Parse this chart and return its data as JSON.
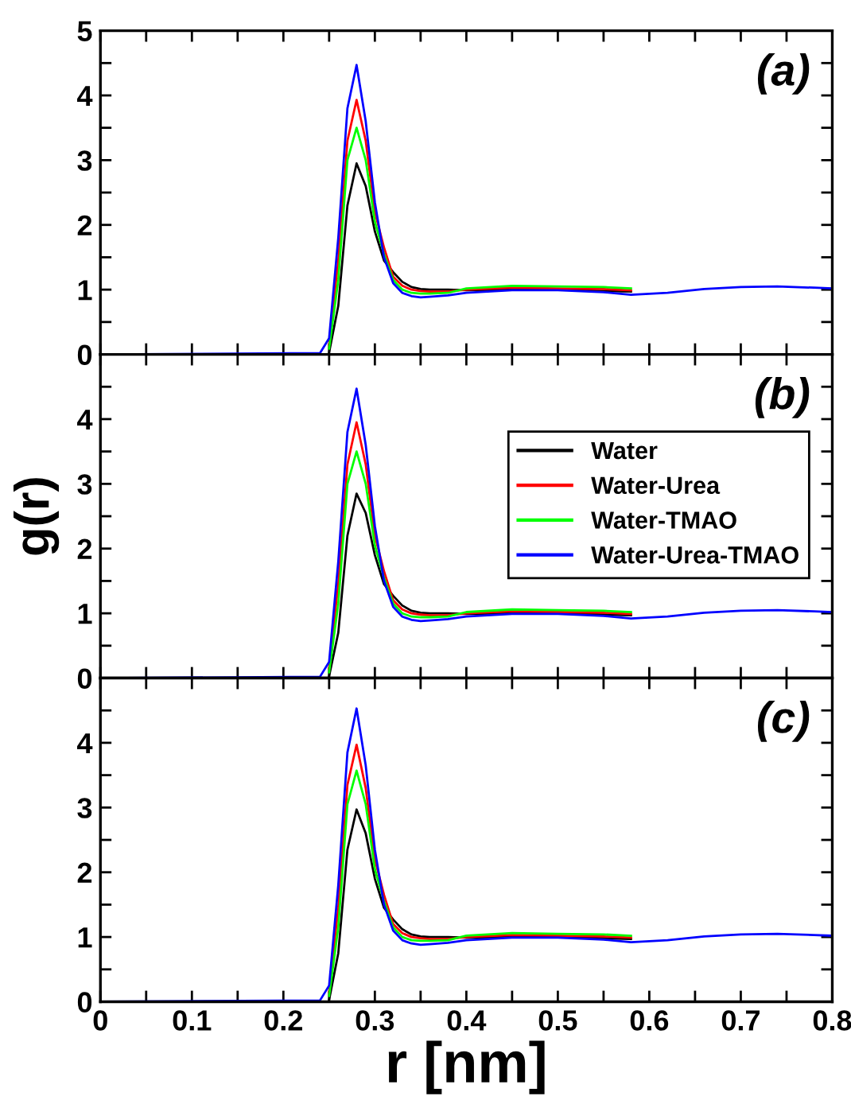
{
  "chart_data": [
    {
      "type": "line",
      "annotations": [
        "(a)"
      ],
      "tick_labels": "y",
      "grid": false,
      "legend": false,
      "line_style": "solid",
      "marker": "none",
      "x": [
        0,
        0.24,
        0.25,
        0.26,
        0.27,
        0.28,
        0.29,
        0.3,
        0.31,
        0.32,
        0.33,
        0.34,
        0.35,
        0.36,
        0.38,
        0.4,
        0.45,
        0.5,
        0.55,
        0.58,
        0.62,
        0.66,
        0.7,
        0.74,
        0.78,
        0.8
      ],
      "xlim": [
        0,
        0.8
      ],
      "ylim": [
        0,
        5
      ],
      "xticks": [
        0,
        {
          "value": 0.05,
          "label": null
        },
        0.1,
        {
          "value": 0.15,
          "label": null
        },
        0.2,
        {
          "value": 0.25,
          "label": null
        },
        0.3,
        {
          "value": 0.35,
          "label": null
        },
        0.4,
        {
          "value": 0.45,
          "label": null
        },
        0.5,
        {
          "value": 0.55,
          "label": null
        },
        0.6,
        {
          "value": 0.65,
          "label": null
        },
        0.7,
        {
          "value": 0.75,
          "label": null
        },
        0.8
      ],
      "yticks": [
        0,
        {
          "value": 0.5,
          "label": null
        },
        1,
        {
          "value": 1.5,
          "label": null
        },
        2,
        {
          "value": 2.5,
          "label": null
        },
        3,
        {
          "value": 3.5,
          "label": null
        },
        4,
        {
          "value": 4.5,
          "label": null
        },
        5
      ],
      "series": [
        {
          "color": "#000000",
          "values": [
            null,
            null,
            0.03,
            0.75,
            2.3,
            2.95,
            2.6,
            1.9,
            1.45,
            1.27,
            1.12,
            1.04,
            1.01,
            1.0,
            1.0,
            0.99,
            1.0,
            1.0,
            0.98,
            0.97,
            null,
            null,
            null,
            null,
            null,
            null
          ]
        },
        {
          "color": "#ff0000",
          "values": [
            null,
            null,
            0.15,
            1.45,
            3.3,
            3.93,
            3.3,
            2.2,
            1.65,
            1.2,
            1.06,
            1.0,
            0.98,
            0.97,
            0.97,
            1.0,
            1.03,
            1.02,
            1.01,
            0.99,
            null,
            null,
            null,
            null,
            null,
            null
          ]
        },
        {
          "color": "#00ff00",
          "values": [
            null,
            null,
            0.09,
            1.15,
            3.0,
            3.5,
            3.0,
            2.05,
            1.55,
            1.15,
            1.0,
            0.95,
            0.94,
            0.94,
            0.95,
            1.02,
            1.06,
            1.05,
            1.04,
            1.02,
            null,
            null,
            null,
            null,
            null,
            null
          ]
        },
        {
          "color": "#0000ff",
          "values": [
            0,
            0.02,
            0.25,
            1.8,
            3.8,
            4.47,
            3.6,
            2.35,
            1.5,
            1.1,
            0.95,
            0.9,
            0.88,
            0.89,
            0.91,
            0.95,
            0.99,
            0.99,
            0.96,
            0.92,
            0.95,
            1.01,
            1.04,
            1.05,
            1.03,
            1.02
          ]
        }
      ]
    },
    {
      "type": "line",
      "annotations": [
        "(b)"
      ],
      "ylabel": "g(r)",
      "tick_labels": "y",
      "grid": false,
      "legend": "right",
      "line_style": "solid",
      "marker": "none",
      "x": [
        0,
        0.24,
        0.25,
        0.26,
        0.27,
        0.28,
        0.29,
        0.3,
        0.31,
        0.32,
        0.33,
        0.34,
        0.35,
        0.36,
        0.38,
        0.4,
        0.45,
        0.5,
        0.55,
        0.58,
        0.62,
        0.66,
        0.7,
        0.74,
        0.78,
        0.8
      ],
      "xlim": [
        0,
        0.8
      ],
      "ylim": [
        0,
        5
      ],
      "xticks": [
        0,
        {
          "value": 0.05,
          "label": null
        },
        0.1,
        {
          "value": 0.15,
          "label": null
        },
        0.2,
        {
          "value": 0.25,
          "label": null
        },
        0.3,
        {
          "value": 0.35,
          "label": null
        },
        0.4,
        {
          "value": 0.45,
          "label": null
        },
        0.5,
        {
          "value": 0.55,
          "label": null
        },
        0.6,
        {
          "value": 0.65,
          "label": null
        },
        0.7,
        {
          "value": 0.75,
          "label": null
        },
        0.8
      ],
      "yticks": [
        0,
        {
          "value": 0.5,
          "label": null
        },
        1,
        {
          "value": 1.5,
          "label": null
        },
        2,
        {
          "value": 2.5,
          "label": null
        },
        3,
        {
          "value": 3.5,
          "label": null
        },
        4,
        {
          "value": 4.5,
          "label": null
        },
        {
          "value": 5,
          "label": null
        }
      ],
      "series": [
        {
          "name": "Water",
          "color": "#000000",
          "values": [
            null,
            null,
            0.03,
            0.7,
            2.2,
            2.85,
            2.55,
            1.9,
            1.45,
            1.27,
            1.12,
            1.04,
            1.01,
            1.0,
            1.0,
            0.99,
            1.0,
            1.0,
            0.98,
            0.97,
            null,
            null,
            null,
            null,
            null,
            null
          ]
        },
        {
          "name": "Water-Urea",
          "color": "#ff0000",
          "values": [
            null,
            null,
            0.15,
            1.45,
            3.3,
            3.95,
            3.3,
            2.2,
            1.65,
            1.2,
            1.06,
            1.0,
            0.98,
            0.97,
            0.97,
            1.0,
            1.03,
            1.02,
            1.01,
            0.99,
            null,
            null,
            null,
            null,
            null,
            null
          ]
        },
        {
          "name": "Water-TMAO",
          "color": "#00ff00",
          "values": [
            null,
            null,
            0.09,
            1.15,
            3.0,
            3.5,
            3.0,
            2.05,
            1.55,
            1.15,
            1.0,
            0.95,
            0.94,
            0.94,
            0.95,
            1.02,
            1.06,
            1.05,
            1.04,
            1.02,
            null,
            null,
            null,
            null,
            null,
            null
          ]
        },
        {
          "name": "Water-Urea-TMAO",
          "color": "#0000ff",
          "values": [
            0,
            0.02,
            0.25,
            1.8,
            3.8,
            4.47,
            3.6,
            2.35,
            1.5,
            1.1,
            0.95,
            0.9,
            0.88,
            0.89,
            0.91,
            0.95,
            0.99,
            0.99,
            0.96,
            0.92,
            0.95,
            1.01,
            1.04,
            1.05,
            1.03,
            1.02
          ]
        }
      ]
    },
    {
      "type": "line",
      "annotations": [
        "(c)"
      ],
      "xlabel": "r [nm]",
      "grid": false,
      "legend": false,
      "line_style": "solid",
      "marker": "none",
      "x": [
        0,
        0.24,
        0.25,
        0.26,
        0.27,
        0.28,
        0.29,
        0.3,
        0.31,
        0.32,
        0.33,
        0.34,
        0.35,
        0.36,
        0.38,
        0.4,
        0.45,
        0.5,
        0.55,
        0.58,
        0.62,
        0.66,
        0.7,
        0.74,
        0.78,
        0.8
      ],
      "xlim": [
        0,
        0.8
      ],
      "ylim": [
        0,
        5
      ],
      "xticks": [
        0,
        {
          "value": 0.05,
          "label": null
        },
        0.1,
        {
          "value": 0.15,
          "label": null
        },
        0.2,
        {
          "value": 0.25,
          "label": null
        },
        0.3,
        {
          "value": 0.35,
          "label": null
        },
        0.4,
        {
          "value": 0.45,
          "label": null
        },
        0.5,
        {
          "value": 0.55,
          "label": null
        },
        0.6,
        {
          "value": 0.65,
          "label": null
        },
        0.7,
        {
          "value": 0.75,
          "label": null
        },
        0.8
      ],
      "yticks": [
        0,
        {
          "value": 0.5,
          "label": null
        },
        1,
        {
          "value": 1.5,
          "label": null
        },
        2,
        {
          "value": 2.5,
          "label": null
        },
        3,
        {
          "value": 3.5,
          "label": null
        },
        4,
        {
          "value": 4.5,
          "label": null
        },
        {
          "value": 5,
          "label": null
        }
      ],
      "series": [
        {
          "color": "#000000",
          "values": [
            null,
            null,
            0.03,
            0.75,
            2.35,
            2.97,
            2.6,
            1.9,
            1.45,
            1.27,
            1.12,
            1.04,
            1.01,
            1.0,
            1.0,
            0.99,
            1.0,
            1.0,
            0.98,
            0.97,
            null,
            null,
            null,
            null,
            null,
            null
          ]
        },
        {
          "color": "#ff0000",
          "values": [
            null,
            null,
            0.15,
            1.45,
            3.35,
            3.97,
            3.3,
            2.2,
            1.65,
            1.2,
            1.06,
            1.0,
            0.98,
            0.97,
            0.97,
            1.0,
            1.03,
            1.02,
            1.01,
            0.99,
            null,
            null,
            null,
            null,
            null,
            null
          ]
        },
        {
          "color": "#00ff00",
          "values": [
            null,
            null,
            0.09,
            1.15,
            3.05,
            3.57,
            3.05,
            2.05,
            1.55,
            1.15,
            1.0,
            0.95,
            0.94,
            0.94,
            0.95,
            1.02,
            1.06,
            1.05,
            1.04,
            1.02,
            null,
            null,
            null,
            null,
            null,
            null
          ]
        },
        {
          "color": "#0000ff",
          "values": [
            0,
            0.02,
            0.25,
            1.8,
            3.85,
            4.53,
            3.65,
            2.35,
            1.5,
            1.1,
            0.95,
            0.9,
            0.88,
            0.89,
            0.91,
            0.95,
            0.99,
            0.99,
            0.96,
            0.92,
            0.95,
            1.01,
            1.04,
            1.05,
            1.03,
            1.02
          ]
        }
      ]
    }
  ]
}
